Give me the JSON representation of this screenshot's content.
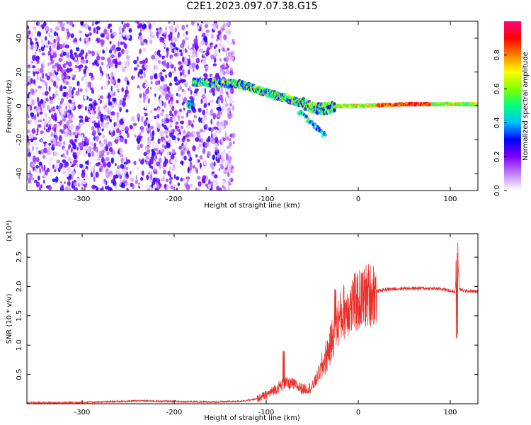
{
  "title": "C2E1.2023.097.07.38.G15",
  "chart_data": [
    {
      "type": "heatmap",
      "xlabel": "Height of straight line (km)",
      "ylabel": "Frequency (Hz)",
      "xlim": [
        -360,
        130
      ],
      "ylim": [
        -50,
        50
      ],
      "x_ticks": [
        -300,
        -200,
        -100,
        0,
        100
      ],
      "y_ticks": [
        -40,
        -20,
        0,
        20,
        40
      ],
      "colorbar": {
        "label": "Normalized spectral amplitude",
        "range": [
          0,
          1
        ],
        "ticks": [
          "0.0",
          "0.2",
          "0.4",
          "0.6",
          "0.8"
        ],
        "colors": [
          "#ffffff",
          "#c080ff",
          "#8000ff",
          "#0000ff",
          "#00c0ff",
          "#00ff80",
          "#80ff00",
          "#ffff00",
          "#ff8000",
          "#ff0000",
          "#ff0080"
        ]
      },
      "features": {
        "noise_region_x": [
          -360,
          -135
        ],
        "noise_gap_x": [
          -250,
          -240
        ],
        "signal_track": [
          {
            "x": -180,
            "f": 14
          },
          {
            "x": -130,
            "f": 13
          },
          {
            "x": -100,
            "f": 8
          },
          {
            "x": -70,
            "f": 3
          },
          {
            "x": -40,
            "f": -2
          },
          {
            "x": -20,
            "f": 0
          },
          {
            "x": 0,
            "f": 0
          },
          {
            "x": 50,
            "f": 1
          },
          {
            "x": 100,
            "f": 1
          },
          {
            "x": 130,
            "f": 1
          }
        ]
      },
      "grid": false,
      "legend": "right"
    },
    {
      "type": "line",
      "xlabel": "Height of straight line (km)",
      "ylabel": "SNR (10 * v/v)",
      "y_multiplier": "(x10⁴)",
      "xlim": [
        -360,
        130
      ],
      "ylim": [
        0,
        2.9
      ],
      "x_ticks": [
        -300,
        -200,
        -100,
        0,
        100
      ],
      "y_ticks": [
        "0.5",
        "1.0",
        "1.5",
        "2.0",
        "2.5"
      ],
      "color": "#e8302a",
      "series": [
        {
          "x": [
            -360,
            -320,
            -280,
            -240,
            -200,
            -160,
            -130,
            -110,
            -100,
            -90,
            -80,
            -70,
            -60,
            -50,
            -40,
            -30,
            -25,
            -20,
            -15,
            -10,
            0,
            10,
            20,
            30,
            50,
            70,
            90,
            100,
            105,
            108,
            110,
            115,
            130
          ],
          "y": [
            0.02,
            0.02,
            0.03,
            0.05,
            0.04,
            0.03,
            0.04,
            0.08,
            0.15,
            0.25,
            0.35,
            0.33,
            0.25,
            0.28,
            0.6,
            1.0,
            1.3,
            1.45,
            1.6,
            1.65,
            1.75,
            1.85,
            1.92,
            1.95,
            1.97,
            1.97,
            1.96,
            1.93,
            1.9,
            2.5,
            1.95,
            1.93,
            1.91
          ]
        }
      ],
      "grid": false
    }
  ]
}
